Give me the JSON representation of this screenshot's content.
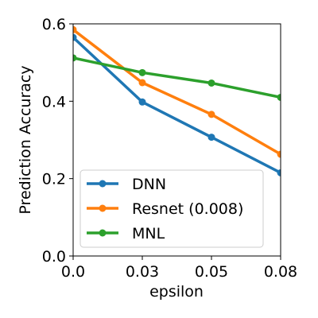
{
  "chart_data": {
    "type": "line",
    "xlabel": "epsilon",
    "ylabel": "Prediction Accuracy",
    "categories": [
      "0.0",
      "0.03",
      "0.05",
      "0.08"
    ],
    "yticks": [
      "0.0",
      "0.2",
      "0.4",
      "0.6"
    ],
    "ylim": [
      0,
      0.6
    ],
    "grid": false,
    "legend_position": "bottom-left",
    "series": [
      {
        "name": "DNN",
        "color": "#1f77b4",
        "values": [
          0.565,
          0.398,
          0.307,
          0.215
        ]
      },
      {
        "name": "Resnet (0.008)",
        "color": "#ff7f0e",
        "values": [
          0.585,
          0.448,
          0.366,
          0.263
        ]
      },
      {
        "name": "MNL",
        "color": "#2ca02c",
        "values": [
          0.512,
          0.474,
          0.447,
          0.41
        ]
      }
    ]
  }
}
